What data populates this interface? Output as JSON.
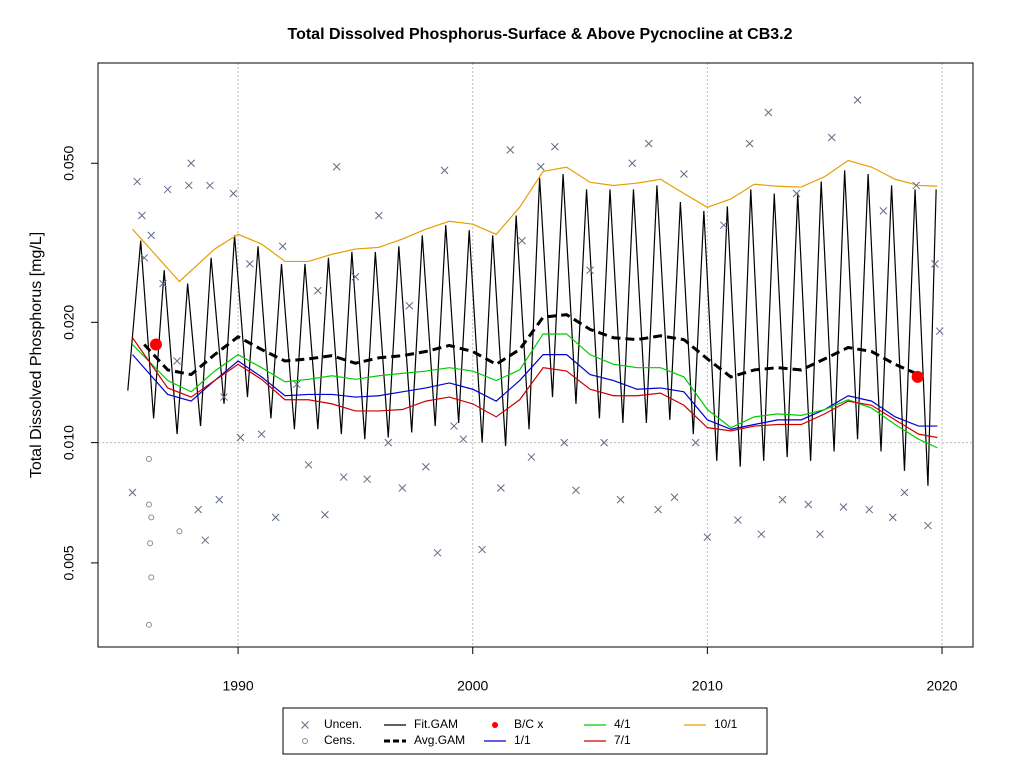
{
  "chart_data": {
    "type": "line",
    "title": "Total Dissolved Phosphorus-Surface & Above Pycnocline at CB3.2",
    "y_label": "Total Dissolved Phosphorus [mg/L]",
    "y_scale": "log",
    "xlim": [
      1984.03,
      2021.32
    ],
    "ylim": [
      0.00308,
      0.0891
    ],
    "xticks": [
      1990,
      2000,
      2010,
      2020
    ],
    "yticks": [
      0.005,
      {
        "value": 0.01,
        "label": "0.010"
      },
      {
        "value": 0.02,
        "label": "0.020"
      },
      {
        "value": 0.05,
        "label": "0.050"
      }
    ],
    "x_grid": true,
    "reference_line_y": 0.01,
    "legend": "bottom",
    "series": [
      {
        "name": "Uncen.",
        "kind": "scatter",
        "marker": "x",
        "color": "#5f6b85",
        "x": [
          1985.5,
          1985.7,
          1985.9,
          1986.0,
          1986.3,
          1986.8,
          1987.0,
          1987.4,
          1987.9,
          1988.0,
          1988.3,
          1988.6,
          1988.8,
          1989.2,
          1989.4,
          1989.8,
          1990.1,
          1990.5,
          1991.0,
          1991.6,
          1991.9,
          1992.5,
          1993.0,
          1993.4,
          1993.7,
          1994.2,
          1994.5,
          1995.0,
          1995.5,
          1996.0,
          1996.4,
          1997.0,
          1997.3,
          1998.0,
          1998.5,
          1998.8,
          1999.2,
          1999.6,
          2000.4,
          2001.2,
          2001.6,
          2002.1,
          2002.5,
          2002.9,
          2003.5,
          2003.9,
          2004.4,
          2005.0,
          2005.6,
          2006.3,
          2006.8,
          2007.5,
          2007.9,
          2008.6,
          2009.0,
          2009.5,
          2010.0,
          2010.7,
          2011.3,
          2011.8,
          2012.3,
          2012.6,
          2013.2,
          2013.8,
          2014.3,
          2014.8,
          2015.3,
          2015.8,
          2016.4,
          2016.9,
          2017.5,
          2017.9,
          2018.4,
          2018.9,
          2019.4,
          2019.7,
          2019.9
        ],
        "values": [
          0.0075,
          0.045,
          0.037,
          0.029,
          0.033,
          0.025,
          0.043,
          0.016,
          0.044,
          0.05,
          0.0068,
          0.0057,
          0.044,
          0.0072,
          0.013,
          0.042,
          0.0103,
          0.028,
          0.0105,
          0.0065,
          0.031,
          0.014,
          0.0088,
          0.024,
          0.0066,
          0.049,
          0.0082,
          0.026,
          0.0081,
          0.037,
          0.01,
          0.0077,
          0.022,
          0.0087,
          0.0053,
          0.048,
          0.011,
          0.0102,
          0.0054,
          0.0077,
          0.054,
          0.032,
          0.0092,
          0.049,
          0.055,
          0.01,
          0.0076,
          0.027,
          0.01,
          0.0072,
          0.05,
          0.056,
          0.0068,
          0.0073,
          0.047,
          0.01,
          0.0058,
          0.035,
          0.0064,
          0.056,
          0.0059,
          0.067,
          0.0072,
          0.042,
          0.007,
          0.0059,
          0.058,
          0.0069,
          0.072,
          0.0068,
          0.038,
          0.0065,
          0.0075,
          0.044,
          0.0062,
          0.028,
          0.019
        ]
      },
      {
        "name": "Cens.",
        "kind": "scatter",
        "marker": "circle",
        "color": "#8c8c8c",
        "x": [
          1986.2,
          1986.2,
          1986.3,
          1986.25,
          1986.3,
          1986.2,
          1987.5
        ],
        "values": [
          0.0091,
          0.007,
          0.0065,
          0.0056,
          0.0046,
          0.0035,
          0.006
        ]
      },
      {
        "name": "Fit.GAM",
        "kind": "line",
        "dash": false,
        "color": "#000000",
        "x": [
          1985.3,
          1985.85,
          1986.4,
          1986.85,
          1987.4,
          1987.85,
          1988.4,
          1988.85,
          1989.4,
          1989.85,
          1990.4,
          1990.85,
          1991.4,
          1991.85,
          1992.4,
          1992.85,
          1993.4,
          1993.85,
          1994.4,
          1994.85,
          1995.4,
          1995.85,
          1996.4,
          1996.85,
          1997.4,
          1997.85,
          1998.4,
          1998.85,
          1999.4,
          1999.85,
          2000.4,
          2000.85,
          2001.4,
          2001.85,
          2002.4,
          2002.85,
          2003.4,
          2003.85,
          2004.4,
          2004.85,
          2005.4,
          2005.85,
          2006.4,
          2006.85,
          2007.4,
          2007.85,
          2008.4,
          2008.85,
          2009.4,
          2009.85,
          2010.4,
          2010.85,
          2011.4,
          2011.85,
          2012.4,
          2012.85,
          2013.4,
          2013.85,
          2014.4,
          2014.85,
          2015.4,
          2015.85,
          2016.4,
          2016.85,
          2017.4,
          2017.85,
          2018.4,
          2018.85,
          2019.4,
          2019.75
        ],
        "values": [
          0.0135,
          0.032,
          0.0115,
          0.027,
          0.0105,
          0.025,
          0.011,
          0.029,
          0.0125,
          0.033,
          0.013,
          0.031,
          0.0115,
          0.028,
          0.0108,
          0.028,
          0.0108,
          0.029,
          0.0105,
          0.03,
          0.0102,
          0.03,
          0.0103,
          0.031,
          0.0106,
          0.033,
          0.011,
          0.035,
          0.0112,
          0.034,
          0.01,
          0.033,
          0.0098,
          0.037,
          0.0108,
          0.046,
          0.013,
          0.047,
          0.0125,
          0.043,
          0.0115,
          0.043,
          0.0112,
          0.043,
          0.0112,
          0.044,
          0.0114,
          0.04,
          0.0105,
          0.038,
          0.009,
          0.039,
          0.0087,
          0.043,
          0.009,
          0.042,
          0.0092,
          0.042,
          0.009,
          0.045,
          0.0095,
          0.048,
          0.0102,
          0.047,
          0.0095,
          0.044,
          0.0085,
          0.043,
          0.0078,
          0.043
        ]
      },
      {
        "name": "Avg.GAM",
        "kind": "line",
        "dash": true,
        "color": "#000000",
        "x": [
          1986,
          1987,
          1988,
          1989,
          1990,
          1991,
          1992,
          1993,
          1994,
          1995,
          1996,
          1997,
          1998,
          1999,
          2000,
          2001,
          2002,
          2003,
          2004,
          2005,
          2006,
          2007,
          2008,
          2009,
          2010,
          2011,
          2012,
          2013,
          2014,
          2015,
          2016,
          2017,
          2018,
          2019
        ],
        "values": [
          0.0176,
          0.0152,
          0.0148,
          0.0166,
          0.0184,
          0.0171,
          0.016,
          0.0162,
          0.0165,
          0.0158,
          0.0163,
          0.0165,
          0.0169,
          0.0175,
          0.0169,
          0.0157,
          0.0171,
          0.0206,
          0.0209,
          0.0192,
          0.0183,
          0.0181,
          0.0185,
          0.0181,
          0.0162,
          0.0146,
          0.0152,
          0.0154,
          0.0152,
          0.0162,
          0.0173,
          0.0169,
          0.0157,
          0.0148
        ]
      },
      {
        "name": "B/C x",
        "kind": "scatter",
        "marker": "dot",
        "color": "#ff0000",
        "x": [
          1986.5,
          2018.96
        ],
        "values": [
          0.0176,
          0.0146
        ]
      },
      {
        "name": "1/1",
        "kind": "line",
        "dash": false,
        "color": "#0000cc",
        "x": [
          1985.5,
          1987,
          1988,
          1989,
          1990,
          1991,
          1992,
          1993,
          1994,
          1995,
          1996,
          1997,
          1998,
          1999,
          2000,
          2001,
          2002,
          2003,
          2004,
          2005,
          2006,
          2007,
          2008,
          2009,
          2010,
          2011,
          2012,
          2013,
          2014,
          2015,
          2016,
          2017,
          2018,
          2019,
          2019.8
        ],
        "values": [
          0.0166,
          0.0132,
          0.0127,
          0.0143,
          0.016,
          0.0146,
          0.0131,
          0.0132,
          0.0132,
          0.013,
          0.0131,
          0.0134,
          0.0137,
          0.0141,
          0.0136,
          0.0127,
          0.0143,
          0.0166,
          0.0166,
          0.0148,
          0.0143,
          0.0136,
          0.0137,
          0.0134,
          0.0114,
          0.0108,
          0.0111,
          0.0114,
          0.0114,
          0.0121,
          0.0131,
          0.0127,
          0.0116,
          0.011,
          0.011
        ]
      },
      {
        "name": "4/1",
        "kind": "line",
        "dash": false,
        "color": "#00cc00",
        "x": [
          1985.5,
          1987,
          1988,
          1989,
          1990,
          1991,
          1992,
          1993,
          1994,
          1995,
          1996,
          1997,
          1998,
          1999,
          2000,
          2001,
          2002,
          2003,
          2004,
          2005,
          2006,
          2007,
          2008,
          2009,
          2010,
          2011,
          2012,
          2013,
          2014,
          2015,
          2016,
          2017,
          2018,
          2019,
          2019.8
        ],
        "values": [
          0.0176,
          0.0143,
          0.0134,
          0.0151,
          0.0166,
          0.0154,
          0.0142,
          0.0144,
          0.0147,
          0.0144,
          0.0147,
          0.0149,
          0.0151,
          0.0154,
          0.0151,
          0.0143,
          0.0152,
          0.0187,
          0.0187,
          0.0166,
          0.0157,
          0.0154,
          0.0154,
          0.0146,
          0.0121,
          0.0109,
          0.0116,
          0.0118,
          0.0117,
          0.0121,
          0.0128,
          0.0122,
          0.0111,
          0.0102,
          0.0097
        ]
      },
      {
        "name": "7/1",
        "kind": "line",
        "dash": false,
        "color": "#cc0000",
        "x": [
          1985.5,
          1987,
          1988,
          1989,
          1990,
          1991,
          1992,
          1993,
          1994,
          1995,
          1996,
          1997,
          1998,
          1999,
          2000,
          2001,
          2002,
          2003,
          2004,
          2005,
          2006,
          2007,
          2008,
          2009,
          2010,
          2011,
          2012,
          2013,
          2014,
          2015,
          2016,
          2017,
          2018,
          2019,
          2019.8
        ],
        "values": [
          0.0183,
          0.0137,
          0.013,
          0.0143,
          0.0157,
          0.0144,
          0.0128,
          0.0128,
          0.0125,
          0.012,
          0.012,
          0.0121,
          0.0127,
          0.013,
          0.0125,
          0.0116,
          0.0128,
          0.0154,
          0.0151,
          0.0136,
          0.0131,
          0.0131,
          0.0133,
          0.0124,
          0.0109,
          0.0107,
          0.011,
          0.0111,
          0.0111,
          0.0118,
          0.0127,
          0.0124,
          0.0114,
          0.0105,
          0.0103
        ]
      },
      {
        "name": "10/1",
        "kind": "line",
        "dash": false,
        "color": "#e69f00",
        "x": [
          1985.5,
          1987.5,
          1989,
          1990,
          1991,
          1992,
          1993,
          1994,
          1995,
          1996,
          1997,
          1998,
          1999,
          2000,
          2001,
          2002,
          2003,
          2004,
          2005,
          2006,
          2007,
          2008,
          2009,
          2010,
          2011,
          2012,
          2013,
          2014,
          2015,
          2016,
          2017,
          2018,
          2019,
          2019.8
        ],
        "values": [
          0.0342,
          0.0253,
          0.0305,
          0.0332,
          0.0314,
          0.0284,
          0.0284,
          0.0296,
          0.0305,
          0.0308,
          0.0323,
          0.0342,
          0.0358,
          0.0352,
          0.0332,
          0.0388,
          0.0477,
          0.0489,
          0.0448,
          0.044,
          0.0446,
          0.0456,
          0.042,
          0.0388,
          0.0407,
          0.0443,
          0.0438,
          0.0436,
          0.0463,
          0.0508,
          0.0489,
          0.0456,
          0.044,
          0.0438
        ]
      }
    ]
  }
}
